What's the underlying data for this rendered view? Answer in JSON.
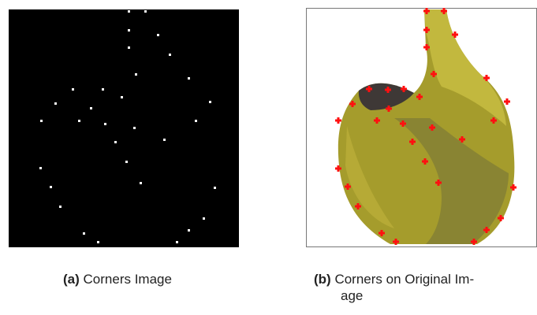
{
  "figure": {
    "subfigures": [
      {
        "label": "(a)",
        "caption_lines": [
          "Corners Image"
        ]
      },
      {
        "label": "(b)",
        "caption_lines": [
          "Corners on Original Im-",
          "age"
        ]
      }
    ]
  }
}
